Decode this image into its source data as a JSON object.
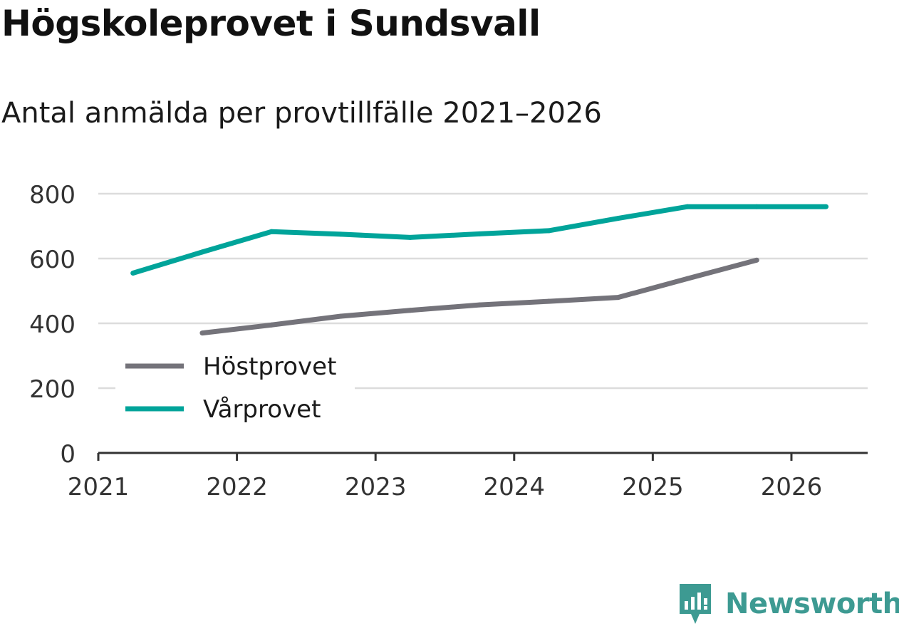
{
  "title": "Högskoleprovet i Sundsvall",
  "subtitle": "Antal anmälda per provtillfälle 2021–2026",
  "brand": {
    "name": "Newsworthy",
    "color": "#3d9a92",
    "icon": "newsworthy-logo-icon"
  },
  "colors": {
    "grid": "#dcdcdc",
    "axis": "#333333",
    "text": "#333333",
    "hostprovet": "#74737a",
    "varprovet": "#00a49a"
  },
  "chart_data": {
    "type": "line",
    "title": "Högskoleprovet i Sundsvall",
    "subtitle": "Antal anmälda per provtillfälle 2021–2026",
    "xlabel": "",
    "ylabel": "",
    "xlim": [
      2021,
      2026.55
    ],
    "ylim": [
      0,
      800
    ],
    "x_ticks": [
      2021,
      2022,
      2023,
      2024,
      2025,
      2026
    ],
    "x_tick_labels": [
      "2021",
      "2022",
      "2023",
      "2024",
      "2025",
      "2026"
    ],
    "y_ticks": [
      0,
      200,
      400,
      600,
      800
    ],
    "y_tick_labels": [
      "0",
      "200",
      "400",
      "600",
      "800"
    ],
    "grid": true,
    "legend_position": "bottom-left",
    "series": [
      {
        "name": "Höstprovet",
        "color": "#74737a",
        "x": [
          2021.75,
          2022.25,
          2022.75,
          2023.25,
          2023.75,
          2024.25,
          2024.75,
          2025.25,
          2025.75
        ],
        "values": [
          370,
          395,
          422,
          440,
          457,
          468,
          480,
          538,
          595
        ]
      },
      {
        "name": "Vårprovet",
        "color": "#00a49a",
        "x": [
          2021.25,
          2021.75,
          2022.25,
          2022.75,
          2023.25,
          2023.75,
          2024.25,
          2024.75,
          2025.25,
          2025.75,
          2026.25
        ],
        "values": [
          555,
          620,
          683,
          675,
          665,
          676,
          686,
          724,
          760,
          760,
          760
        ]
      }
    ]
  }
}
